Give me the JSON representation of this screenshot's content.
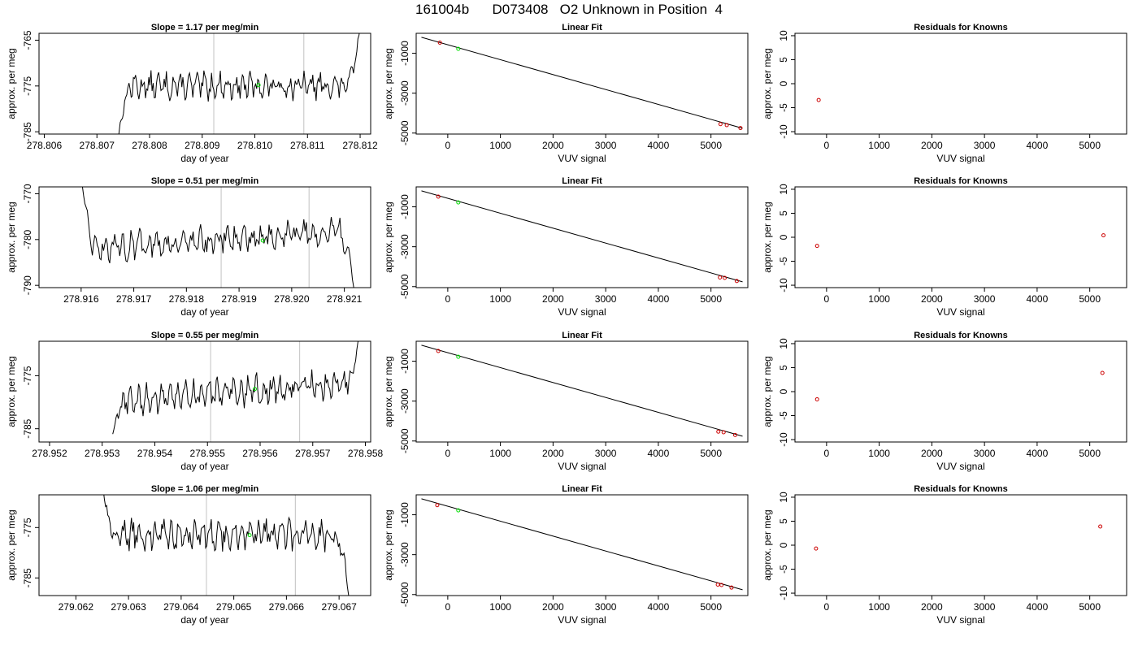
{
  "figure": {
    "title": "161004b      D073408   O2 Unknown in Position  4"
  },
  "chart_data": [
    {
      "type": "line",
      "row": 1,
      "title": "Slope =  1.17  per meg/min",
      "xlabel": "day of year",
      "ylabel": "approx. per meg",
      "xlim": [
        278.8059,
        278.8122
      ],
      "ylim": [
        -785.5,
        -763.5
      ],
      "xticks": [
        "278.806",
        "278.807",
        "278.808",
        "278.809",
        "278.810",
        "278.811",
        "278.812"
      ],
      "yticks": [
        "-765",
        "-775",
        "-785"
      ],
      "vlines": [
        278.80922,
        278.81093
      ],
      "start_x": 278.8074,
      "start_y": -787,
      "end_x": 278.812,
      "end_y": -762,
      "mean": -775.0,
      "amplitude": 1.7,
      "marker": {
        "x": 278.81007,
        "y": -774.8
      },
      "line_color": "#000000",
      "marker_color": "#00dd00",
      "vline_color": "#cccccc"
    },
    {
      "type": "scatter",
      "row": 1,
      "title": "Linear Fit",
      "xlabel": "VUV signal",
      "ylabel": "approx. per meg",
      "xlim": [
        -600,
        5700
      ],
      "ylim": [
        -5050,
        0
      ],
      "xticks": [
        "0",
        "1000",
        "2000",
        "3000",
        "4000",
        "5000"
      ],
      "yticks": [
        "-1000",
        "-3000",
        "-5000"
      ],
      "fit_line": {
        "x": [
          -500,
          5600
        ],
        "y": [
          -200,
          -4760
        ]
      },
      "points_red": [
        {
          "x": -150,
          "y": -470
        },
        {
          "x": 5180,
          "y": -4550
        },
        {
          "x": 5300,
          "y": -4600
        },
        {
          "x": 5560,
          "y": -4750
        }
      ],
      "points_green": [
        {
          "x": 200,
          "y": -780
        }
      ]
    },
    {
      "type": "scatter",
      "row": 1,
      "title": "Residuals for Knowns",
      "xlabel": "VUV signal",
      "ylabel": "approx. per meg",
      "xlim": [
        -600,
        5700
      ],
      "ylim": [
        -10.5,
        10.5
      ],
      "xticks": [
        "0",
        "1000",
        "2000",
        "3000",
        "4000",
        "5000"
      ],
      "yticks": [
        "-10",
        "-5",
        "0",
        "5",
        "10"
      ],
      "points_red": [
        {
          "x": -150,
          "y": -3.4
        }
      ]
    },
    {
      "type": "line",
      "row": 2,
      "title": "Slope =  0.51  per meg/min",
      "xlabel": "day of year",
      "ylabel": "approx. per meg",
      "xlim": [
        278.9152,
        278.9215
      ],
      "ylim": [
        -790.5,
        -768.5
      ],
      "xticks": [
        "278.916",
        "278.917",
        "278.918",
        "278.919",
        "278.920",
        "278.921"
      ],
      "yticks": [
        "-770",
        "-780",
        "-790"
      ],
      "vlines": [
        278.91866,
        278.92033
      ],
      "start_x": 278.916,
      "start_y": -766,
      "end_x": 278.9212,
      "end_y": -792,
      "mean": -780.0,
      "amplitude": 1.8,
      "marker": {
        "x": 278.91945,
        "y": -780.2
      },
      "line_color": "#000000",
      "marker_color": "#00dd00",
      "vline_color": "#cccccc"
    },
    {
      "type": "scatter",
      "row": 2,
      "title": "Linear Fit",
      "xlabel": "VUV signal",
      "ylabel": "approx. per meg",
      "xlim": [
        -600,
        5700
      ],
      "ylim": [
        -5050,
        0
      ],
      "xticks": [
        "0",
        "1000",
        "2000",
        "3000",
        "4000",
        "5000"
      ],
      "yticks": [
        "-1000",
        "-3000",
        "-5000"
      ],
      "fit_line": {
        "x": [
          -500,
          5600
        ],
        "y": [
          -200,
          -4760
        ]
      },
      "points_red": [
        {
          "x": -180,
          "y": -490
        },
        {
          "x": 5170,
          "y": -4540
        },
        {
          "x": 5260,
          "y": -4560
        },
        {
          "x": 5490,
          "y": -4720
        }
      ],
      "points_green": [
        {
          "x": 200,
          "y": -780
        }
      ]
    },
    {
      "type": "scatter",
      "row": 2,
      "title": "Residuals for Knowns",
      "xlabel": "VUV signal",
      "ylabel": "approx. per meg",
      "xlim": [
        -600,
        5700
      ],
      "ylim": [
        -10.5,
        10.5
      ],
      "xticks": [
        "0",
        "1000",
        "2000",
        "3000",
        "4000",
        "5000"
      ],
      "yticks": [
        "-10",
        "-5",
        "0",
        "5",
        "10"
      ],
      "points_red": [
        {
          "x": -180,
          "y": -1.8
        },
        {
          "x": 5260,
          "y": 0.4
        }
      ]
    },
    {
      "type": "line",
      "row": 3,
      "title": "Slope =  0.55  per meg/min",
      "xlabel": "day of year",
      "ylabel": "approx. per meg",
      "xlim": [
        278.9518,
        278.9581
      ],
      "ylim": [
        -787.5,
        -768.5
      ],
      "xticks": [
        "278.952",
        "278.953",
        "278.954",
        "278.955",
        "278.956",
        "278.957",
        "278.958"
      ],
      "yticks": [
        "-775",
        "-785"
      ],
      "vlines": [
        278.95506,
        278.95675
      ],
      "start_x": 278.9532,
      "start_y": -786,
      "end_x": 278.9579,
      "end_y": -767,
      "mean": -778.0,
      "amplitude": 1.6,
      "marker": {
        "x": 278.9559,
        "y": -777.5
      },
      "line_color": "#000000",
      "marker_color": "#00dd00",
      "vline_color": "#cccccc"
    },
    {
      "type": "scatter",
      "row": 3,
      "title": "Linear Fit",
      "xlabel": "VUV signal",
      "ylabel": "approx. per meg",
      "xlim": [
        -600,
        5700
      ],
      "ylim": [
        -5050,
        0
      ],
      "xticks": [
        "0",
        "1000",
        "2000",
        "3000",
        "4000",
        "5000"
      ],
      "yticks": [
        "-1000",
        "-3000",
        "-5000"
      ],
      "fit_line": {
        "x": [
          -500,
          5600
        ],
        "y": [
          -200,
          -4760
        ]
      },
      "points_red": [
        {
          "x": -180,
          "y": -490
        },
        {
          "x": 5140,
          "y": -4530
        },
        {
          "x": 5240,
          "y": -4560
        },
        {
          "x": 5460,
          "y": -4700
        }
      ],
      "points_green": [
        {
          "x": 200,
          "y": -780
        }
      ]
    },
    {
      "type": "scatter",
      "row": 3,
      "title": "Residuals for Knowns",
      "xlabel": "VUV signal",
      "ylabel": "approx. per meg",
      "xlim": [
        -600,
        5700
      ],
      "ylim": [
        -10.5,
        10.5
      ],
      "xticks": [
        "0",
        "1000",
        "2000",
        "3000",
        "4000",
        "5000"
      ],
      "yticks": [
        "-10",
        "-5",
        "0",
        "5",
        "10"
      ],
      "points_red": [
        {
          "x": -180,
          "y": -1.6
        },
        {
          "x": 5240,
          "y": 3.9
        }
      ]
    },
    {
      "type": "line",
      "row": 4,
      "title": "Slope =  1.06  per meg/min",
      "xlabel": "day of year",
      "ylabel": "approx. per meg",
      "xlim": [
        279.0613,
        279.0676
      ],
      "ylim": [
        -788.5,
        -768.5
      ],
      "xticks": [
        "279.062",
        "279.063",
        "279.064",
        "279.065",
        "279.066",
        "279.067"
      ],
      "yticks": [
        "-775",
        "-785"
      ],
      "vlines": [
        279.06448,
        279.06617
      ],
      "start_x": 279.0625,
      "start_y": -766,
      "end_x": 279.0672,
      "end_y": -790,
      "mean": -776.5,
      "amplitude": 1.8,
      "marker": {
        "x": 279.0653,
        "y": -776.5
      },
      "line_color": "#000000",
      "marker_color": "#00dd00",
      "vline_color": "#cccccc"
    },
    {
      "type": "scatter",
      "row": 4,
      "title": "Linear Fit",
      "xlabel": "VUV signal",
      "ylabel": "approx. per meg",
      "xlim": [
        -600,
        5700
      ],
      "ylim": [
        -5050,
        0
      ],
      "xticks": [
        "0",
        "1000",
        "2000",
        "3000",
        "4000",
        "5000"
      ],
      "yticks": [
        "-1000",
        "-3000",
        "-5000"
      ],
      "fit_line": {
        "x": [
          -500,
          5600
        ],
        "y": [
          -200,
          -4760
        ]
      },
      "points_red": [
        {
          "x": -200,
          "y": -520
        },
        {
          "x": 5130,
          "y": -4500
        },
        {
          "x": 5200,
          "y": -4520
        },
        {
          "x": 5390,
          "y": -4650
        }
      ],
      "points_green": [
        {
          "x": 200,
          "y": -780
        }
      ]
    },
    {
      "type": "scatter",
      "row": 4,
      "title": "Residuals for Knowns",
      "xlabel": "VUV signal",
      "ylabel": "approx. per meg",
      "xlim": [
        -600,
        5700
      ],
      "ylim": [
        -10.5,
        10.5
      ],
      "xticks": [
        "0",
        "1000",
        "2000",
        "3000",
        "4000",
        "5000"
      ],
      "yticks": [
        "-10",
        "-5",
        "0",
        "5",
        "10"
      ],
      "points_red": [
        {
          "x": -200,
          "y": -0.7
        },
        {
          "x": 5200,
          "y": 3.9
        }
      ]
    }
  ]
}
